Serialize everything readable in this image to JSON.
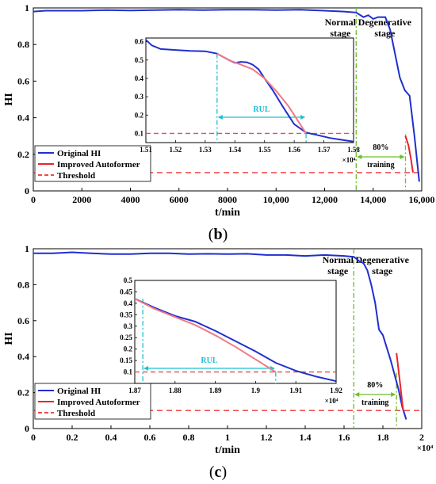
{
  "panels": [
    {
      "label_letter": "b"
    },
    {
      "label_letter": "c"
    }
  ],
  "chart_data": [
    {
      "id": "b",
      "type": "line",
      "title": "",
      "xlabel": "t/min",
      "ylabel": "HI",
      "xlim": [
        0,
        16000
      ],
      "ylim": [
        0,
        1
      ],
      "x_ticks": [
        0,
        2000,
        4000,
        6000,
        8000,
        10000,
        12000,
        14000,
        16000
      ],
      "x_tick_labels": [
        "0",
        "2000",
        "4000",
        "6000",
        "8000",
        "10,000",
        "12,000",
        "14,000",
        "16,000"
      ],
      "y_ticks": [
        0,
        0.2,
        0.4,
        0.6,
        0.8,
        1
      ],
      "y_tick_labels": [
        "0",
        "0.2",
        "0.4",
        "0.6",
        "0.8",
        "1"
      ],
      "grid": false,
      "legend_position": "bottom-left",
      "colors": {
        "original": "#1f2fd0",
        "improved": "#e8242a",
        "threshold": "#f04a4a",
        "cyan": "#1ac0d6",
        "green": "#6cbf28"
      },
      "series": [
        {
          "name": "Original HI",
          "style": "solid",
          "x": [
            0,
            500,
            1000,
            2000,
            3000,
            4000,
            5000,
            6000,
            7000,
            8000,
            9000,
            10000,
            11000,
            12000,
            12800,
            13300,
            13600,
            13800,
            14000,
            14200,
            14500,
            14700,
            14900,
            15100,
            15300,
            15500,
            15700,
            15900
          ],
          "y": [
            0.98,
            0.985,
            0.985,
            0.985,
            0.988,
            0.986,
            0.988,
            0.99,
            0.988,
            0.99,
            0.99,
            0.988,
            0.99,
            0.985,
            0.98,
            0.975,
            0.95,
            0.96,
            0.94,
            0.95,
            0.95,
            0.88,
            0.75,
            0.62,
            0.55,
            0.52,
            0.3,
            0.05
          ]
        },
        {
          "name": "Improved Autoformer",
          "style": "solid",
          "x": [
            15330,
            15450,
            15550,
            15640
          ],
          "y": [
            0.3,
            0.25,
            0.18,
            0.1
          ]
        },
        {
          "name": "Threshold",
          "style": "dashed",
          "x": [
            0,
            16000
          ],
          "y": [
            0.1,
            0.1
          ]
        }
      ],
      "annotations": {
        "normal_stage": "Normal stage",
        "degenerative_stage": "Degenerative stage",
        "training_pct": "80%",
        "training_word": "training",
        "stage_boundary_x": 13300,
        "training_end_x": 15330
      },
      "inset": {
        "xlim": [
          15100,
          15800
        ],
        "ylim": [
          0.05,
          0.62
        ],
        "x_ticks": [
          15100,
          15200,
          15300,
          15400,
          15500,
          15600,
          15700,
          15800
        ],
        "x_tick_labels": [
          "1.51",
          "1.52",
          "1.53",
          "1.54",
          "1.55",
          "1.56",
          "1.57",
          "1.58"
        ],
        "y_ticks": [
          0.1,
          0.2,
          0.3,
          0.4,
          0.5,
          0.6
        ],
        "y_tick_labels": [
          "0.1",
          "0.2",
          "0.3",
          "0.4",
          "0.5",
          "0.6"
        ],
        "exponent_label": "×10⁴",
        "rul_label": "RUL",
        "rul_start_x": 15340,
        "rul_end_x": 15640,
        "original_x": [
          15100,
          15120,
          15150,
          15200,
          15250,
          15300,
          15340,
          15380,
          15400,
          15420,
          15440,
          15460,
          15480,
          15500,
          15530,
          15560,
          15600,
          15640,
          15680,
          15720,
          15760,
          15800
        ],
        "original_y": [
          0.61,
          0.58,
          0.56,
          0.555,
          0.55,
          0.548,
          0.535,
          0.5,
          0.485,
          0.49,
          0.488,
          0.475,
          0.45,
          0.4,
          0.33,
          0.25,
          0.15,
          0.105,
          0.09,
          0.075,
          0.065,
          0.055
        ],
        "improved_x": [
          15340,
          15380,
          15420,
          15460,
          15500,
          15540,
          15580,
          15620,
          15640
        ],
        "improved_y": [
          0.535,
          0.5,
          0.475,
          0.45,
          0.4,
          0.33,
          0.25,
          0.15,
          0.1
        ],
        "threshold_y": 0.1
      }
    },
    {
      "id": "c",
      "type": "line",
      "title": "",
      "xlabel": "t/min",
      "ylabel": "HI",
      "xlim": [
        0,
        20000
      ],
      "ylim": [
        0,
        1
      ],
      "x_ticks": [
        0,
        2000,
        4000,
        6000,
        8000,
        10000,
        12000,
        14000,
        16000,
        18000,
        20000
      ],
      "x_tick_labels": [
        "0",
        "0.2",
        "0.4",
        "0.6",
        "0.8",
        "1",
        "1.2",
        "1.4",
        "1.6",
        "1.8",
        "2"
      ],
      "exponent_label": "×10⁴",
      "y_ticks": [
        0,
        0.2,
        0.4,
        0.6,
        0.8,
        1
      ],
      "y_tick_labels": [
        "0",
        "0.2",
        "0.4",
        "0.6",
        "0.8",
        "1"
      ],
      "grid": false,
      "legend_position": "bottom-left",
      "series": [
        {
          "name": "Original HI",
          "style": "solid",
          "x": [
            0,
            1000,
            2000,
            3000,
            4000,
            5000,
            6000,
            7000,
            8000,
            9000,
            10000,
            11000,
            12000,
            13000,
            14000,
            15000,
            16000,
            16500,
            16800,
            17000,
            17200,
            17400,
            17600,
            17800,
            18000,
            18200,
            18400,
            18600,
            18800,
            19000,
            19200
          ],
          "y": [
            0.975,
            0.975,
            0.98,
            0.975,
            0.97,
            0.97,
            0.975,
            0.975,
            0.97,
            0.972,
            0.97,
            0.972,
            0.965,
            0.965,
            0.96,
            0.965,
            0.96,
            0.955,
            0.93,
            0.92,
            0.88,
            0.8,
            0.7,
            0.55,
            0.52,
            0.45,
            0.38,
            0.3,
            0.22,
            0.12,
            0.05
          ]
        },
        {
          "name": "Improved Autoformer",
          "style": "solid",
          "x": [
            18700,
            18800,
            18900,
            19000,
            19050
          ],
          "y": [
            0.42,
            0.33,
            0.24,
            0.14,
            0.1
          ]
        },
        {
          "name": "Threshold",
          "style": "dashed",
          "x": [
            0,
            20000
          ],
          "y": [
            0.1,
            0.1
          ]
        }
      ],
      "annotations": {
        "normal_stage": "Normal stage",
        "degenerative_stage": "Degenerative stage",
        "training_pct": "80%",
        "training_word": "training",
        "stage_boundary_x": 16500,
        "training_end_x": 18700
      },
      "inset": {
        "xlim": [
          18700,
          19200
        ],
        "ylim": [
          0.05,
          0.5
        ],
        "x_ticks": [
          18700,
          18800,
          18900,
          19000,
          19100,
          19200
        ],
        "x_tick_labels": [
          "1.87",
          "1.88",
          "1.89",
          "1.9",
          "1.91",
          "1.92"
        ],
        "y_ticks": [
          0.1,
          0.15,
          0.2,
          0.25,
          0.3,
          0.35,
          0.4,
          0.45,
          0.5
        ],
        "y_tick_labels": [
          "0.1",
          "0.15",
          "0.2",
          "0.25",
          "0.3",
          "0.35",
          "0.4",
          "0.45",
          "0.5"
        ],
        "exponent_label": "×10⁴",
        "rul_label": "RUL",
        "rul_start_x": 18720,
        "rul_end_x": 19050,
        "original_x": [
          18600,
          18650,
          18700,
          18750,
          18800,
          18850,
          18900,
          18950,
          19000,
          19050,
          19100,
          19150,
          19200
        ],
        "original_y": [
          0.47,
          0.445,
          0.42,
          0.38,
          0.345,
          0.32,
          0.28,
          0.235,
          0.19,
          0.14,
          0.105,
          0.08,
          0.06
        ],
        "improved_x": [
          18700,
          18750,
          18800,
          18850,
          18900,
          18950,
          19000,
          19050
        ],
        "improved_y": [
          0.42,
          0.375,
          0.34,
          0.305,
          0.26,
          0.21,
          0.155,
          0.1
        ],
        "threshold_y": 0.1
      }
    }
  ]
}
